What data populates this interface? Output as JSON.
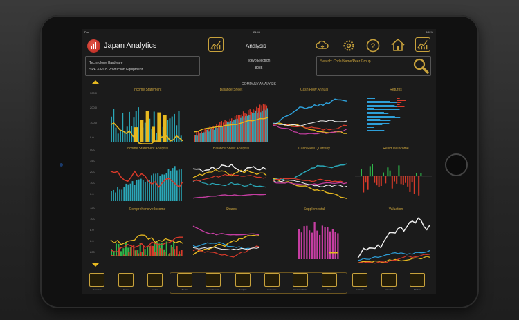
{
  "status_bar": {
    "carrier": "iPad",
    "time": "21:46",
    "battery": "100%"
  },
  "header": {
    "app_title": "Japan Analytics",
    "screen_title": "Analysis",
    "icons": [
      "chart-icon",
      "cloud-sync-icon",
      "gear-icon",
      "help-icon",
      "home-icon",
      "chart-icon"
    ]
  },
  "company_info": {
    "sector": "Technology Hardware",
    "industry": "SPE & PCB Production Equipment",
    "name": "Tokyo Electron",
    "code": "8035"
  },
  "search": {
    "placeholder": "Search: Code/Name/Peer Group"
  },
  "section_title": "COMPANY ANALYSIS",
  "colors": {
    "accent": "#c8a23c",
    "up_arrow": "#e6b820",
    "teal": "#2aa8b8",
    "red": "#d83a2a",
    "yellow": "#e6b820",
    "pink": "#c53ea2",
    "blue": "#2e9fd8",
    "white": "#eeeeee"
  },
  "panels": [
    {
      "title": "Income Statement"
    },
    {
      "title": "Balance Sheet"
    },
    {
      "title": "Cash Flow Annual"
    },
    {
      "title": "Returns"
    },
    {
      "title": "Income Statement Analysis"
    },
    {
      "title": "Balance Sheet Analysis"
    },
    {
      "title": "Cash Flow Quarterly"
    },
    {
      "title": "Residual Income"
    },
    {
      "title": "Comprehensive Income"
    },
    {
      "title": "Shares"
    },
    {
      "title": "Supplemental"
    },
    {
      "title": "Valuation"
    }
  ],
  "y_axis_labels": {
    "row1": [
      "300.0",
      "200.0",
      "100.0",
      "0.0"
    ],
    "row2": [
      "50.0",
      "35.0",
      "20.0",
      "10.0",
      "0.0"
    ],
    "row3": [
      "12.0",
      "10.0",
      "8.0",
      "6.0",
      "800"
    ]
  },
  "toolbar": [
    {
      "label": "Overview",
      "icon": "document-icon"
    },
    {
      "label": "Notes",
      "icon": "notes-icon"
    },
    {
      "label": "Folders",
      "icon": "folder-icon"
    },
    {
      "label": "Sector",
      "icon": "factory-icon"
    },
    {
      "label": "Constituents",
      "icon": "list-icon"
    },
    {
      "label": "Analysis",
      "icon": "chart-icon"
    },
    {
      "label": "Estimates",
      "icon": "notepad-icon"
    },
    {
      "label": "Financial Data",
      "icon": "table-icon"
    },
    {
      "label": "Price",
      "icon": "candlestick-icon"
    },
    {
      "label": "Heatmap",
      "icon": "heatmap-icon"
    },
    {
      "label": "Screener",
      "icon": "screener-icon"
    },
    {
      "label": "Models",
      "icon": "models-icon"
    }
  ]
}
